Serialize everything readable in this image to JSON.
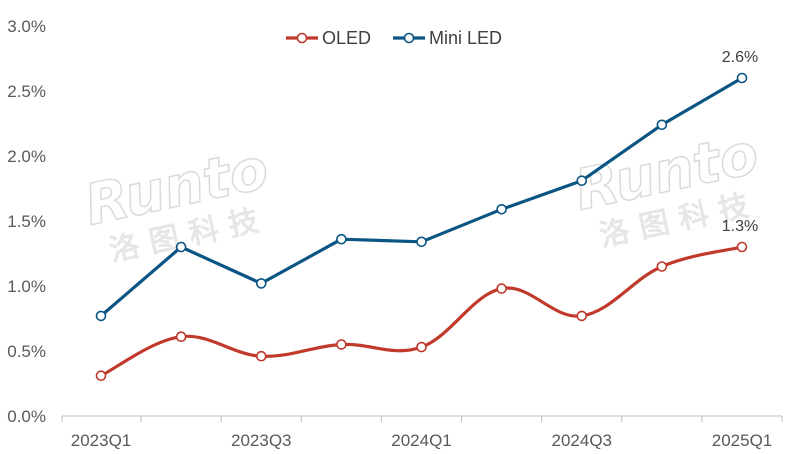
{
  "chart_data": {
    "type": "line",
    "categories": [
      "2023Q1",
      "2023Q2",
      "2023Q3",
      "2023Q4",
      "2024Q1",
      "2024Q2",
      "2024Q3",
      "2024Q4",
      "2025Q1"
    ],
    "x_tick_labels": [
      "2023Q1",
      "2023Q3",
      "2024Q1",
      "2024Q3",
      "2025Q1"
    ],
    "y_tick_labels": [
      "0.0%",
      "0.5%",
      "1.0%",
      "1.5%",
      "2.0%",
      "2.5%",
      "3.0%"
    ],
    "ylim": [
      0,
      3.0
    ],
    "y_unit": "%",
    "grid": false,
    "legend_position": "top-center",
    "series": [
      {
        "name": "OLED",
        "color": "#c0392b",
        "smooth": true,
        "values": [
          0.31,
          0.61,
          0.46,
          0.55,
          0.53,
          0.98,
          0.77,
          1.15,
          1.3
        ]
      },
      {
        "name": "Mini LED",
        "color": "#0b5584",
        "smooth": false,
        "values": [
          0.77,
          1.3,
          1.02,
          1.36,
          1.34,
          1.59,
          1.81,
          2.24,
          2.6
        ]
      }
    ],
    "annotations": [
      {
        "series": "Mini LED",
        "index": 8,
        "text": "2.6%"
      },
      {
        "series": "OLED",
        "index": 8,
        "text": "1.3%"
      }
    ]
  },
  "watermark": {
    "text_en": "Runto",
    "text_cn": "洛 图 科 技"
  }
}
